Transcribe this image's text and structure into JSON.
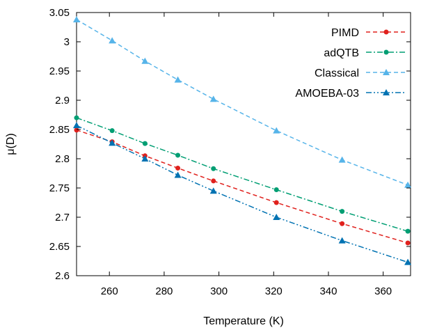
{
  "chart_data": {
    "type": "line",
    "title": "",
    "xlabel": "Temperature (K)",
    "ylabel": "μ(D)",
    "xlim": [
      248,
      370
    ],
    "ylim": [
      2.6,
      3.05
    ],
    "xticks": [
      260,
      280,
      300,
      320,
      340,
      360
    ],
    "yticks": [
      2.6,
      2.65,
      2.7,
      2.75,
      2.8,
      2.85,
      2.9,
      2.95,
      3,
      3.05
    ],
    "xtick_labels": [
      "260",
      "280",
      "300",
      "320",
      "340",
      "360"
    ],
    "ytick_labels": [
      "2.6",
      "2.65",
      "2.7",
      "2.75",
      "2.8",
      "2.85",
      "2.9",
      "2.95",
      "3",
      "3.05"
    ],
    "grid": false,
    "legend_position": "top-right",
    "series": [
      {
        "name": "PIMD",
        "color": "#e0211d",
        "marker": "circle",
        "dash": "dashed",
        "x": [
          248,
          261,
          273,
          285,
          298,
          321,
          345,
          369
        ],
        "y": [
          2.849,
          2.829,
          2.805,
          2.784,
          2.762,
          2.725,
          2.689,
          2.656
        ]
      },
      {
        "name": "adQTB",
        "color": "#009e73",
        "marker": "circle",
        "dash": "dashdot",
        "x": [
          248,
          261,
          273,
          285,
          298,
          321,
          345,
          369
        ],
        "y": [
          2.87,
          2.848,
          2.826,
          2.806,
          2.783,
          2.747,
          2.71,
          2.676
        ]
      },
      {
        "name": "Classical",
        "color": "#56b4e9",
        "marker": "triangle",
        "dash": "dashed",
        "x": [
          248,
          261,
          273,
          285,
          298,
          321,
          345,
          369
        ],
        "y": [
          3.038,
          3.002,
          2.967,
          2.935,
          2.902,
          2.848,
          2.798,
          2.755
        ]
      },
      {
        "name": "AMOEBA-03",
        "color": "#0072b2",
        "marker": "triangle",
        "dash": "dashdotdot",
        "x": [
          248,
          261,
          273,
          285,
          298,
          321,
          345,
          369
        ],
        "y": [
          2.857,
          2.827,
          2.8,
          2.772,
          2.745,
          2.7,
          2.66,
          2.623
        ]
      }
    ]
  }
}
